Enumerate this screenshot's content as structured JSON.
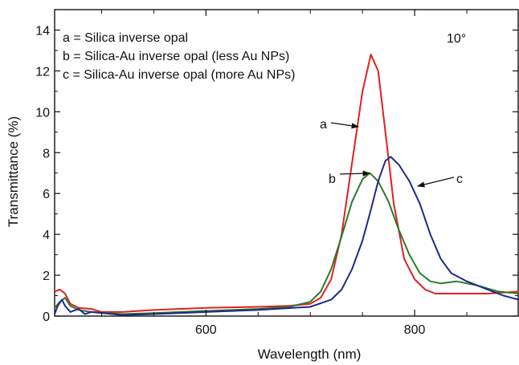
{
  "chart_data": {
    "type": "line",
    "xlabel": "Wavelength (nm)",
    "ylabel": "Transmittance (%)",
    "xlim": [
      455,
      900
    ],
    "ylim": [
      0,
      15
    ],
    "x_ticks": [
      600,
      800
    ],
    "y_ticks": [
      0,
      2,
      4,
      6,
      8,
      10,
      12,
      14
    ],
    "grid": false,
    "annotation": "10°",
    "legend_placement": "top-left",
    "legend": [
      "a = Silica inverse opal",
      "b = Silica-Au inverse opal (less Au NPs)",
      "c = Silica-Au inverse opal (more Au NPs)"
    ],
    "series": [
      {
        "name": "a",
        "color": "#e02020",
        "points": [
          [
            455,
            1.2
          ],
          [
            460,
            1.3
          ],
          [
            465,
            1.1
          ],
          [
            470,
            0.6
          ],
          [
            478,
            0.4
          ],
          [
            490,
            0.35
          ],
          [
            500,
            0.2
          ],
          [
            520,
            0.2
          ],
          [
            550,
            0.3
          ],
          [
            600,
            0.4
          ],
          [
            650,
            0.45
          ],
          [
            680,
            0.5
          ],
          [
            700,
            0.6
          ],
          [
            710,
            0.9
          ],
          [
            720,
            1.8
          ],
          [
            730,
            4.0
          ],
          [
            740,
            7.5
          ],
          [
            750,
            11.0
          ],
          [
            758,
            12.8
          ],
          [
            765,
            12.0
          ],
          [
            772,
            9.0
          ],
          [
            780,
            5.5
          ],
          [
            790,
            2.8
          ],
          [
            800,
            1.8
          ],
          [
            810,
            1.3
          ],
          [
            820,
            1.1
          ],
          [
            850,
            1.1
          ],
          [
            870,
            1.1
          ],
          [
            900,
            1.2
          ]
        ]
      },
      {
        "name": "b",
        "color": "#2a7a2a",
        "points": [
          [
            455,
            0.4
          ],
          [
            460,
            0.7
          ],
          [
            465,
            0.9
          ],
          [
            470,
            0.5
          ],
          [
            478,
            0.3
          ],
          [
            490,
            0.2
          ],
          [
            520,
            0.1
          ],
          [
            550,
            0.15
          ],
          [
            600,
            0.25
          ],
          [
            650,
            0.35
          ],
          [
            680,
            0.45
          ],
          [
            700,
            0.7
          ],
          [
            710,
            1.2
          ],
          [
            720,
            2.3
          ],
          [
            730,
            3.9
          ],
          [
            740,
            5.6
          ],
          [
            750,
            6.7
          ],
          [
            757,
            7.0
          ],
          [
            765,
            6.6
          ],
          [
            775,
            5.6
          ],
          [
            785,
            4.2
          ],
          [
            795,
            3.0
          ],
          [
            805,
            2.1
          ],
          [
            815,
            1.7
          ],
          [
            825,
            1.6
          ],
          [
            840,
            1.7
          ],
          [
            860,
            1.5
          ],
          [
            880,
            1.2
          ],
          [
            900,
            1.1
          ]
        ]
      },
      {
        "name": "c",
        "color": "#1e2a8a",
        "points": [
          [
            455,
            0.1
          ],
          [
            458,
            0.5
          ],
          [
            462,
            0.8
          ],
          [
            465,
            0.5
          ],
          [
            470,
            0.2
          ],
          [
            478,
            0.35
          ],
          [
            484,
            0.1
          ],
          [
            490,
            0.2
          ],
          [
            520,
            0.05
          ],
          [
            550,
            0.1
          ],
          [
            600,
            0.2
          ],
          [
            650,
            0.3
          ],
          [
            700,
            0.45
          ],
          [
            720,
            0.8
          ],
          [
            730,
            1.3
          ],
          [
            740,
            2.3
          ],
          [
            750,
            3.7
          ],
          [
            758,
            5.2
          ],
          [
            765,
            6.6
          ],
          [
            772,
            7.6
          ],
          [
            777,
            7.8
          ],
          [
            785,
            7.4
          ],
          [
            795,
            6.6
          ],
          [
            805,
            5.5
          ],
          [
            815,
            4.0
          ],
          [
            825,
            2.8
          ],
          [
            835,
            2.1
          ],
          [
            850,
            1.7
          ],
          [
            870,
            1.3
          ],
          [
            885,
            1.0
          ],
          [
            900,
            0.8
          ]
        ]
      }
    ],
    "arrow_labels": [
      {
        "text": "a",
        "series": "a"
      },
      {
        "text": "b",
        "series": "b"
      },
      {
        "text": "c",
        "series": "c"
      }
    ]
  }
}
